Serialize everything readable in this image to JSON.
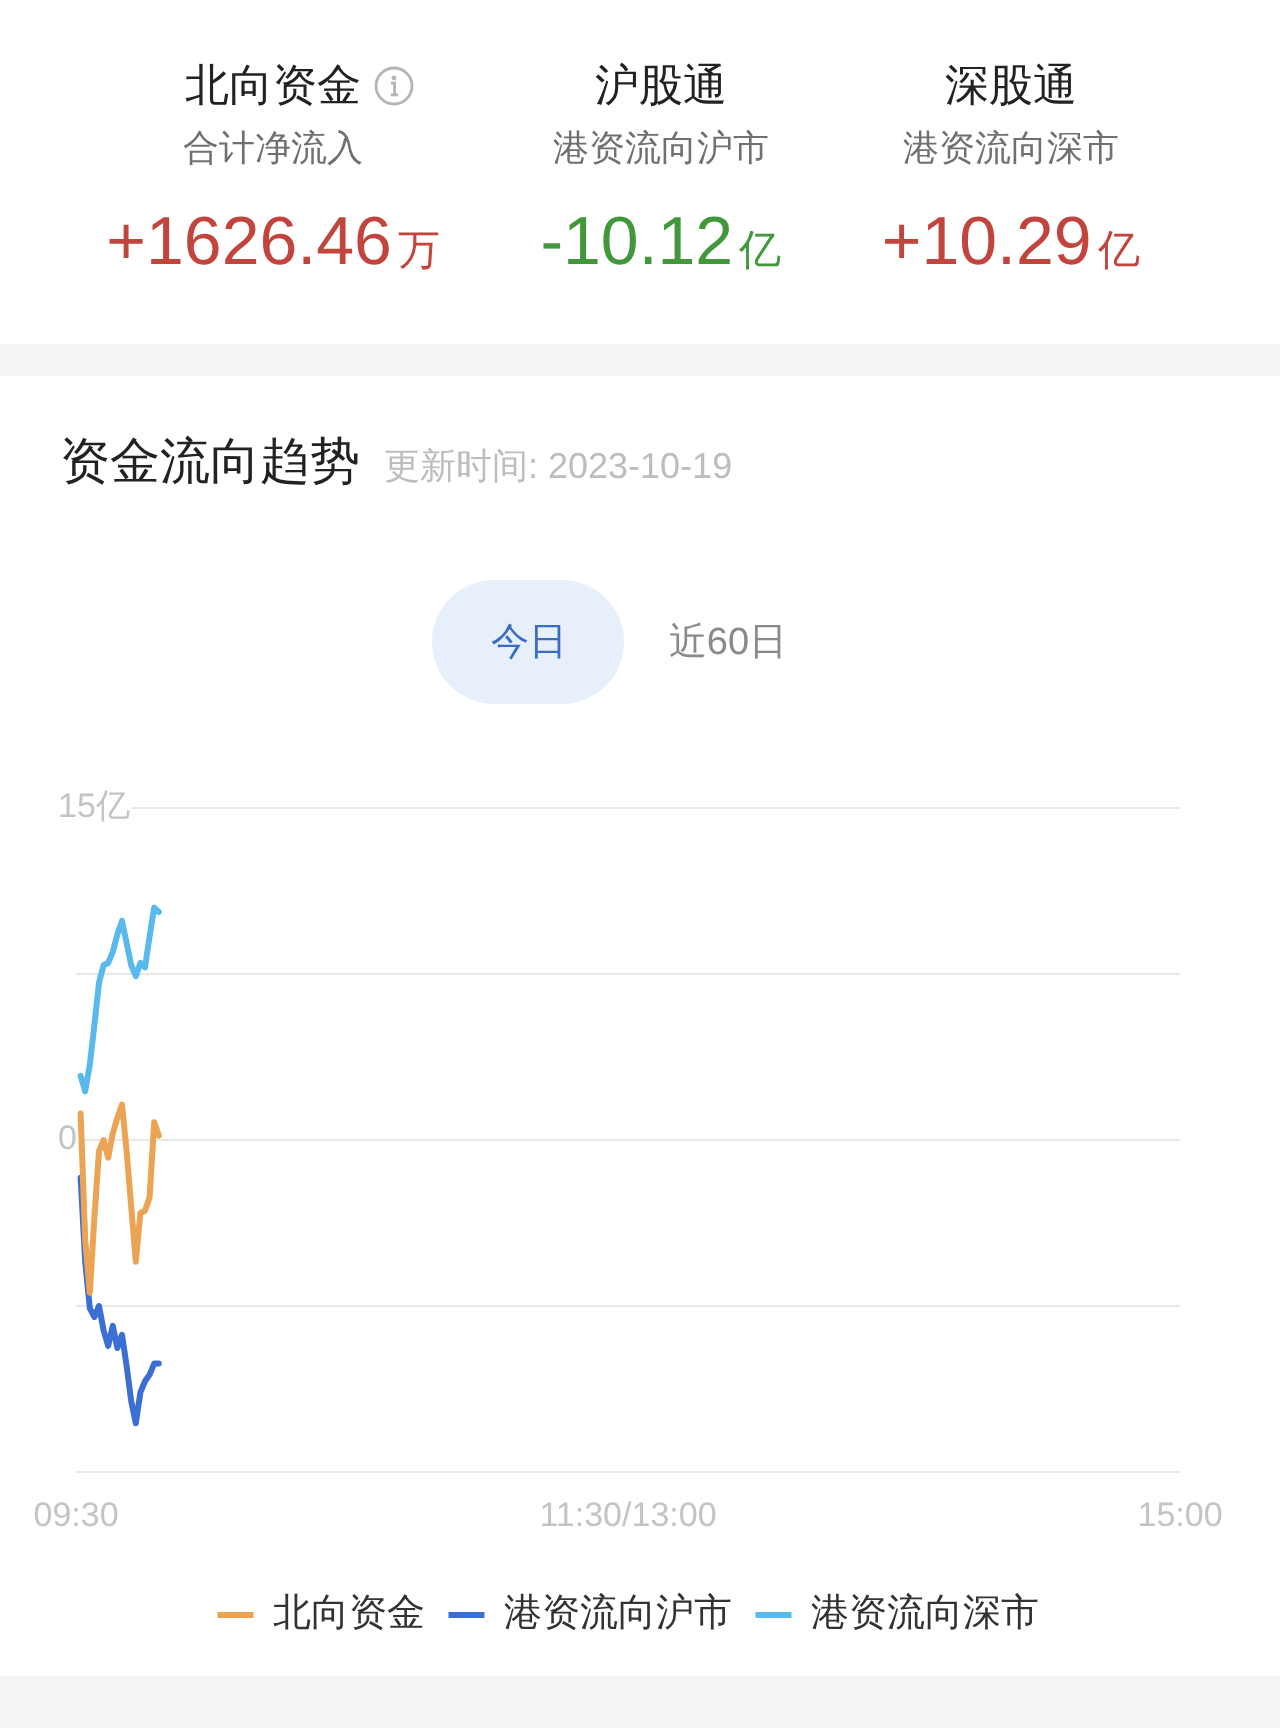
{
  "chart_data": [
    {
      "type": "other",
      "categories": [
        "北向资金",
        "沪股通",
        "深股通"
      ],
      "annotations": [
        "合计净流入",
        "港资流向沪市",
        "港资流向深市"
      ],
      "value_labels": [
        "+1626.46万",
        "-10.12亿",
        "+10.29亿"
      ],
      "colors": [
        "#c2453d",
        "#40983a",
        "#c2453d"
      ]
    },
    {
      "type": "line",
      "title": "资金流向趋势",
      "subtitle": "更新时间: 2023-10-19",
      "annotations": [
        "今日",
        "近60日"
      ],
      "categories": [
        "09:30",
        null,
        null,
        null,
        null,
        null,
        null,
        null,
        null,
        null,
        null,
        null,
        null,
        null,
        null,
        null,
        null,
        null,
        null,
        null,
        null,
        null,
        null,
        null,
        null,
        null,
        null,
        null,
        null,
        null,
        null,
        null,
        null,
        null,
        null,
        null,
        null,
        null,
        null,
        null,
        null,
        null,
        null,
        null,
        null,
        null,
        null,
        null,
        null,
        null,
        null,
        null,
        null,
        null,
        null,
        null,
        null,
        null,
        null,
        null,
        null,
        null,
        null,
        null,
        null,
        null,
        null,
        null,
        null,
        null,
        null,
        null,
        null,
        null,
        null,
        null,
        null,
        null,
        null,
        null,
        null,
        null,
        null,
        null,
        null,
        null,
        null,
        null,
        null,
        null,
        null,
        null,
        null,
        null,
        null,
        null,
        null,
        null,
        null,
        null,
        null,
        null,
        null,
        null,
        null,
        null,
        null,
        null,
        null,
        null,
        null,
        null,
        null,
        null,
        null,
        null,
        null,
        null,
        null,
        null,
        "11:30/13:00",
        null,
        null,
        null,
        null,
        null,
        null,
        null,
        null,
        null,
        null,
        null,
        null,
        null,
        null,
        null,
        null,
        null,
        null,
        null,
        null,
        null,
        null,
        null,
        null,
        null,
        null,
        null,
        null,
        null,
        null,
        null,
        null,
        null,
        null,
        null,
        null,
        null,
        null,
        null,
        null,
        null,
        null,
        null,
        null,
        null,
        null,
        null,
        null,
        null,
        null,
        null,
        null,
        null,
        null,
        null,
        null,
        null,
        null,
        null,
        null,
        null,
        null,
        null,
        null,
        null,
        null,
        null,
        null,
        null,
        null,
        null,
        null,
        null,
        null,
        null,
        null,
        null,
        null,
        null,
        null,
        null,
        null,
        null,
        null,
        null,
        null,
        null,
        null,
        null,
        null,
        null,
        null,
        null,
        null,
        null,
        null,
        null,
        null,
        null,
        null,
        null,
        null,
        null,
        null,
        null,
        null,
        null,
        null,
        null,
        null,
        null,
        null,
        null,
        null,
        null,
        null,
        null,
        null,
        null,
        "15:00"
      ],
      "ylim": [
        -15,
        15
      ],
      "yticks": [
        {
          "value": -15,
          "label": null
        },
        {
          "value": -7.5,
          "label": null
        },
        {
          "value": 0,
          "label": "0"
        },
        {
          "value": 7.5,
          "label": null
        },
        {
          "value": 15,
          "label": "15亿"
        }
      ],
      "grid": "y",
      "legend": "bottom",
      "marker": "none",
      "series": [
        {
          "name": "北向资金",
          "color": "#eba354",
          "values": [
            null,
            1.2,
            -4.5,
            -6.9,
            -3.5,
            -0.5,
            0.0,
            -0.8,
            0.3,
            1.0,
            1.6,
            -0.5,
            -3.0,
            -5.5,
            -3.3,
            -3.2,
            -2.6,
            0.8,
            0.2,
            null,
            null,
            null,
            null,
            null,
            null,
            null,
            null,
            null,
            null,
            null,
            null,
            null,
            null,
            null,
            null,
            null,
            null,
            null,
            null,
            null,
            null,
            null,
            null,
            null,
            null,
            null,
            null,
            null,
            null,
            null,
            null,
            null,
            null,
            null,
            null,
            null,
            null,
            null,
            null,
            null,
            null,
            null,
            null,
            null,
            null,
            null,
            null,
            null,
            null,
            null,
            null,
            null,
            null,
            null,
            null,
            null,
            null,
            null,
            null,
            null,
            null,
            null,
            null,
            null,
            null,
            null,
            null,
            null,
            null,
            null,
            null,
            null,
            null,
            null,
            null,
            null,
            null,
            null,
            null,
            null,
            null,
            null,
            null,
            null,
            null,
            null,
            null,
            null,
            null,
            null,
            null,
            null,
            null,
            null,
            null,
            null,
            null,
            null,
            null,
            null,
            null,
            null,
            null,
            null,
            null,
            null,
            null,
            null,
            null,
            null,
            null,
            null,
            null,
            null,
            null,
            null,
            null,
            null,
            null,
            null,
            null,
            null,
            null,
            null,
            null,
            null,
            null,
            null,
            null,
            null,
            null,
            null,
            null,
            null,
            null,
            null,
            null,
            null,
            null,
            null,
            null,
            null,
            null,
            null,
            null,
            null,
            null,
            null,
            null,
            null,
            null,
            null,
            null,
            null,
            null,
            null,
            null,
            null,
            null,
            null,
            null,
            null,
            null,
            null,
            null,
            null,
            null,
            null,
            null,
            null,
            null,
            null,
            null,
            null,
            null,
            null,
            null,
            null,
            null,
            null,
            null,
            null,
            null,
            null,
            null,
            null,
            null,
            null,
            null,
            null,
            null,
            null,
            null,
            null,
            null,
            null,
            null,
            null,
            null,
            null,
            null,
            null,
            null,
            null,
            null,
            null,
            null,
            null,
            null,
            null,
            null,
            null,
            null,
            null,
            null,
            null,
            null,
            null,
            null,
            null,
            null
          ]
        },
        {
          "name": "港资流向沪市",
          "color": "#3c6fd6",
          "values": [
            null,
            -1.7,
            -5.5,
            -7.6,
            -8.0,
            -7.5,
            -8.6,
            -9.3,
            -8.4,
            -9.4,
            -8.8,
            -10.2,
            -11.8,
            -12.8,
            -11.4,
            -10.9,
            -10.6,
            -10.1,
            -10.1,
            null,
            null,
            null,
            null,
            null,
            null,
            null,
            null,
            null,
            null,
            null,
            null,
            null,
            null,
            null,
            null,
            null,
            null,
            null,
            null,
            null,
            null,
            null,
            null,
            null,
            null,
            null,
            null,
            null,
            null,
            null,
            null,
            null,
            null,
            null,
            null,
            null,
            null,
            null,
            null,
            null,
            null,
            null,
            null,
            null,
            null,
            null,
            null,
            null,
            null,
            null,
            null,
            null,
            null,
            null,
            null,
            null,
            null,
            null,
            null,
            null,
            null,
            null,
            null,
            null,
            null,
            null,
            null,
            null,
            null,
            null,
            null,
            null,
            null,
            null,
            null,
            null,
            null,
            null,
            null,
            null,
            null,
            null,
            null,
            null,
            null,
            null,
            null,
            null,
            null,
            null,
            null,
            null,
            null,
            null,
            null,
            null,
            null,
            null,
            null,
            null,
            null,
            null,
            null,
            null,
            null,
            null,
            null,
            null,
            null,
            null,
            null,
            null,
            null,
            null,
            null,
            null,
            null,
            null,
            null,
            null,
            null,
            null,
            null,
            null,
            null,
            null,
            null,
            null,
            null,
            null,
            null,
            null,
            null,
            null,
            null,
            null,
            null,
            null,
            null,
            null,
            null,
            null,
            null,
            null,
            null,
            null,
            null,
            null,
            null,
            null,
            null,
            null,
            null,
            null,
            null,
            null,
            null,
            null,
            null,
            null,
            null,
            null,
            null,
            null,
            null,
            null,
            null,
            null,
            null,
            null,
            null,
            null,
            null,
            null,
            null,
            null,
            null,
            null,
            null,
            null,
            null,
            null,
            null,
            null,
            null,
            null,
            null,
            null,
            null,
            null,
            null,
            null,
            null,
            null,
            null,
            null,
            null,
            null,
            null,
            null,
            null,
            null,
            null,
            null,
            null,
            null,
            null,
            null,
            null,
            null,
            null,
            null,
            null,
            null,
            null,
            null,
            null,
            null,
            null,
            null,
            null
          ]
        },
        {
          "name": "港资流向深市",
          "color": "#5ab9ec",
          "values": [
            null,
            2.9,
            2.2,
            3.4,
            5.2,
            7.1,
            7.9,
            8.0,
            8.5,
            9.3,
            9.9,
            8.9,
            7.9,
            7.4,
            8.0,
            7.8,
            9.2,
            10.5,
            10.3,
            null,
            null,
            null,
            null,
            null,
            null,
            null,
            null,
            null,
            null,
            null,
            null,
            null,
            null,
            null,
            null,
            null,
            null,
            null,
            null,
            null,
            null,
            null,
            null,
            null,
            null,
            null,
            null,
            null,
            null,
            null,
            null,
            null,
            null,
            null,
            null,
            null,
            null,
            null,
            null,
            null,
            null,
            null,
            null,
            null,
            null,
            null,
            null,
            null,
            null,
            null,
            null,
            null,
            null,
            null,
            null,
            null,
            null,
            null,
            null,
            null,
            null,
            null,
            null,
            null,
            null,
            null,
            null,
            null,
            null,
            null,
            null,
            null,
            null,
            null,
            null,
            null,
            null,
            null,
            null,
            null,
            null,
            null,
            null,
            null,
            null,
            null,
            null,
            null,
            null,
            null,
            null,
            null,
            null,
            null,
            null,
            null,
            null,
            null,
            null,
            null,
            null,
            null,
            null,
            null,
            null,
            null,
            null,
            null,
            null,
            null,
            null,
            null,
            null,
            null,
            null,
            null,
            null,
            null,
            null,
            null,
            null,
            null,
            null,
            null,
            null,
            null,
            null,
            null,
            null,
            null,
            null,
            null,
            null,
            null,
            null,
            null,
            null,
            null,
            null,
            null,
            null,
            null,
            null,
            null,
            null,
            null,
            null,
            null,
            null,
            null,
            null,
            null,
            null,
            null,
            null,
            null,
            null,
            null,
            null,
            null,
            null,
            null,
            null,
            null,
            null,
            null,
            null,
            null,
            null,
            null,
            null,
            null,
            null,
            null,
            null,
            null,
            null,
            null,
            null,
            null,
            null,
            null,
            null,
            null,
            null,
            null,
            null,
            null,
            null,
            null,
            null,
            null,
            null,
            null,
            null,
            null,
            null,
            null,
            null,
            null,
            null,
            null,
            null,
            null,
            null,
            null,
            null,
            null,
            null,
            null,
            null,
            null,
            null,
            null,
            null,
            null,
            null,
            null,
            null,
            null,
            null
          ]
        }
      ]
    }
  ]
}
